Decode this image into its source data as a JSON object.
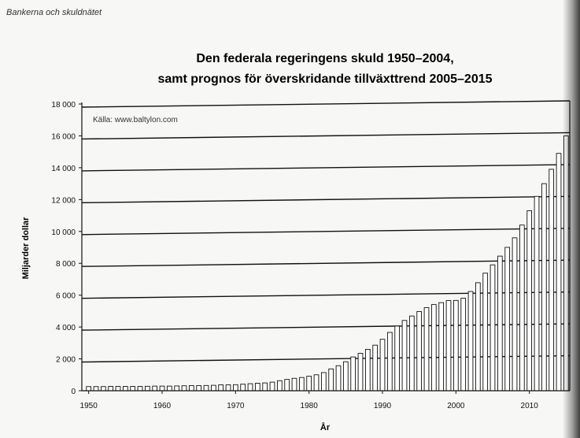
{
  "page": {
    "header": "Bankerna och skuldnätet"
  },
  "chart_data": {
    "type": "bar",
    "title": "Den federala regeringens skuld 1950–2004,",
    "subtitle": "samt prognos för överskridande tillväxttrend 2005–2015",
    "source": "Källa: www.baltylon.com",
    "xlabel": "År",
    "ylabel": "Miljarder dollar",
    "ylim": [
      0,
      18000
    ],
    "yticks": [
      0,
      2000,
      4000,
      6000,
      8000,
      10000,
      12000,
      14000,
      16000,
      18000
    ],
    "ytick_labels": [
      "0",
      "2 000",
      "4 000",
      "6 000",
      "8 000",
      "10 000",
      "12 000",
      "14 000",
      "16 000",
      "18 000"
    ],
    "xticks": [
      1950,
      1960,
      1970,
      1980,
      1990,
      2000,
      2010
    ],
    "xtick_labels": [
      "1950",
      "1960",
      "1970",
      "1980",
      "1990",
      "2000",
      "2010"
    ],
    "grid": true,
    "x": [
      1950,
      1951,
      1952,
      1953,
      1954,
      1955,
      1956,
      1957,
      1958,
      1959,
      1960,
      1961,
      1962,
      1963,
      1964,
      1965,
      1966,
      1967,
      1968,
      1969,
      1970,
      1971,
      1972,
      1973,
      1974,
      1975,
      1976,
      1977,
      1978,
      1979,
      1980,
      1981,
      1982,
      1983,
      1984,
      1985,
      1986,
      1987,
      1988,
      1989,
      1990,
      1991,
      1992,
      1993,
      1994,
      1995,
      1996,
      1997,
      1998,
      1999,
      2000,
      2001,
      2002,
      2003,
      2004,
      2005,
      2006,
      2007,
      2008,
      2009,
      2010,
      2011,
      2012,
      2013,
      2014,
      2015
    ],
    "values": [
      260,
      260,
      260,
      270,
      270,
      270,
      270,
      270,
      280,
      290,
      290,
      290,
      300,
      310,
      320,
      320,
      330,
      340,
      370,
      370,
      380,
      410,
      440,
      470,
      490,
      540,
      630,
      710,
      780,
      830,
      910,
      1000,
      1140,
      1370,
      1570,
      1820,
      2120,
      2350,
      2600,
      2860,
      3230,
      3660,
      4060,
      4410,
      4690,
      4970,
      5220,
      5410,
      5530,
      5660,
      5670,
      5810,
      6230,
      6780,
      7380,
      7900,
      8450,
      9000,
      9600,
      10400,
      11300,
      12200,
      13000,
      13900,
      14900,
      16000
    ]
  }
}
